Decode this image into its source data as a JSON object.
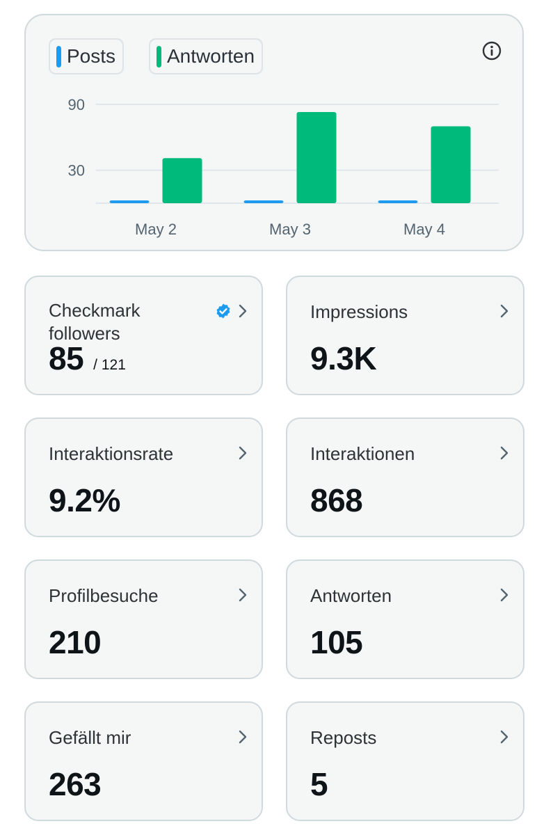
{
  "legend": {
    "posts_label": "Posts",
    "replies_label": "Antworten",
    "posts_color": "#1d9bf0",
    "replies_color": "#00ba7c"
  },
  "icons": {
    "info": "info-icon",
    "chevron": "chevron-right-icon",
    "verified": "verified-badge-icon"
  },
  "chart_data": {
    "type": "bar",
    "categories": [
      "May 2",
      "May 3",
      "May 4"
    ],
    "series": [
      {
        "name": "Posts",
        "color": "#1d9bf0",
        "values": [
          1,
          2,
          1.5
        ]
      },
      {
        "name": "Antworten",
        "color": "#00ba7c",
        "values": [
          41,
          83,
          70
        ]
      }
    ],
    "y_ticks": [
      30,
      90
    ],
    "ylim": [
      0,
      100
    ],
    "grid": true
  },
  "stats": [
    {
      "title": "Checkmark followers",
      "value": "85",
      "sub": "/ 121",
      "verified": true
    },
    {
      "title": "Impressions",
      "value": "9.3K"
    },
    {
      "title": "Interaktionsrate",
      "value": "9.2%"
    },
    {
      "title": "Interaktionen",
      "value": "868"
    },
    {
      "title": "Profilbesuche",
      "value": "210"
    },
    {
      "title": "Antworten",
      "value": "105"
    },
    {
      "title": "Gefällt mir",
      "value": "263"
    },
    {
      "title": "Reposts",
      "value": "5"
    }
  ]
}
